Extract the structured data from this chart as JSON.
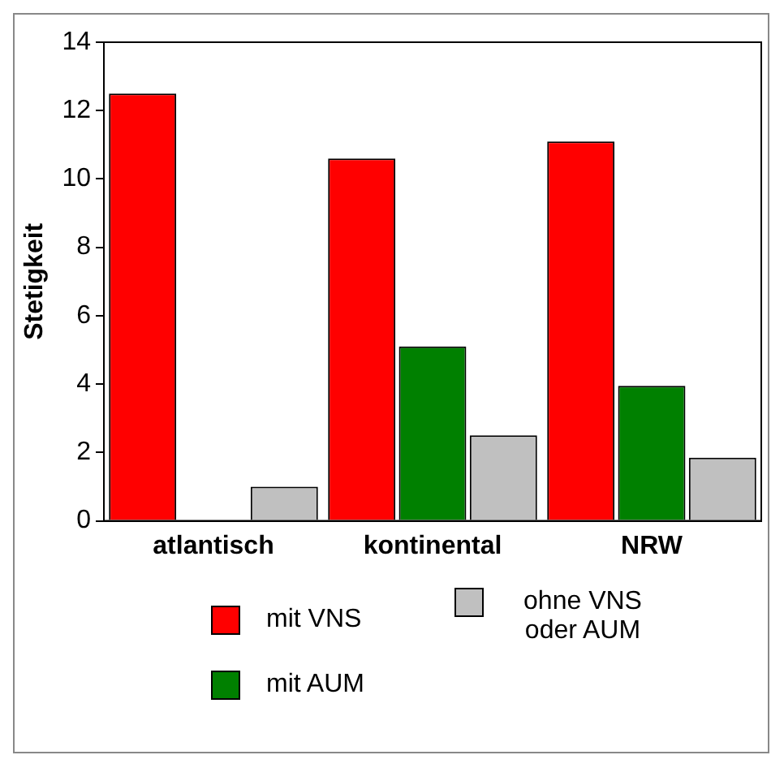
{
  "chart_data": {
    "type": "bar",
    "ylabel": "Stetigkeit",
    "categories": [
      "atlantisch",
      "kontinental",
      "NRW"
    ],
    "series": [
      {
        "name": "mit VNS",
        "color": "#ff0000",
        "values": [
          12.5,
          10.6,
          11.1
        ]
      },
      {
        "name": "mit AUM",
        "color": "#008000",
        "values": [
          null,
          5.1,
          3.95
        ]
      },
      {
        "name": "ohne VNS oder AUM",
        "color": "#c0c0c0",
        "values": [
          1.0,
          2.5,
          1.85
        ]
      }
    ],
    "ylim": [
      0,
      14
    ],
    "yticks": [
      0,
      2,
      4,
      6,
      8,
      10,
      12,
      14
    ],
    "grid": false,
    "legend": "bottom"
  }
}
